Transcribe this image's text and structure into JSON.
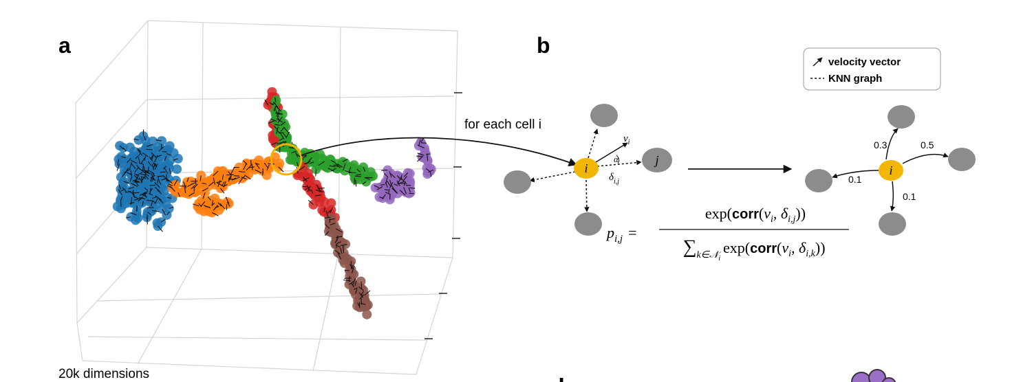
{
  "panel_labels": {
    "a": "a",
    "b": "b",
    "d": "d"
  },
  "panel_a": {
    "axis_label": "20k dimensions"
  },
  "panel_b": {
    "annotation": "for each cell i",
    "legend": {
      "items": [
        "velocity vector",
        "KNN graph"
      ]
    },
    "left_graph": {
      "center": "i",
      "neighbor": "j",
      "vector": "v",
      "vector_sub": "i",
      "angle": "α",
      "displacement": "δ",
      "displacement_sub": "i,j"
    },
    "right_graph": {
      "center": "i",
      "edge_weights": [
        0.3,
        0.5,
        0.1,
        0.1
      ]
    },
    "formula": {
      "lhs": "p",
      "lhs_sub": "i,j",
      "equals": "=",
      "numerator": {
        "f": "exp(",
        "corr": "corr",
        "open": "(",
        "v": "v",
        "v_sub": "i",
        "sep": ", ",
        "delta": "δ",
        "delta_sub": "i,j",
        "close": "))"
      },
      "denominator": {
        "sum": "∑",
        "sum_sub": "k∈𝒩",
        "sum_sub_sub": "i",
        "f": "exp(",
        "corr": "corr",
        "open": "(",
        "v": "v",
        "v_sub": "i",
        "sep": ", ",
        "delta": "δ",
        "delta_sub": "i,k",
        "close": "))"
      }
    }
  }
}
